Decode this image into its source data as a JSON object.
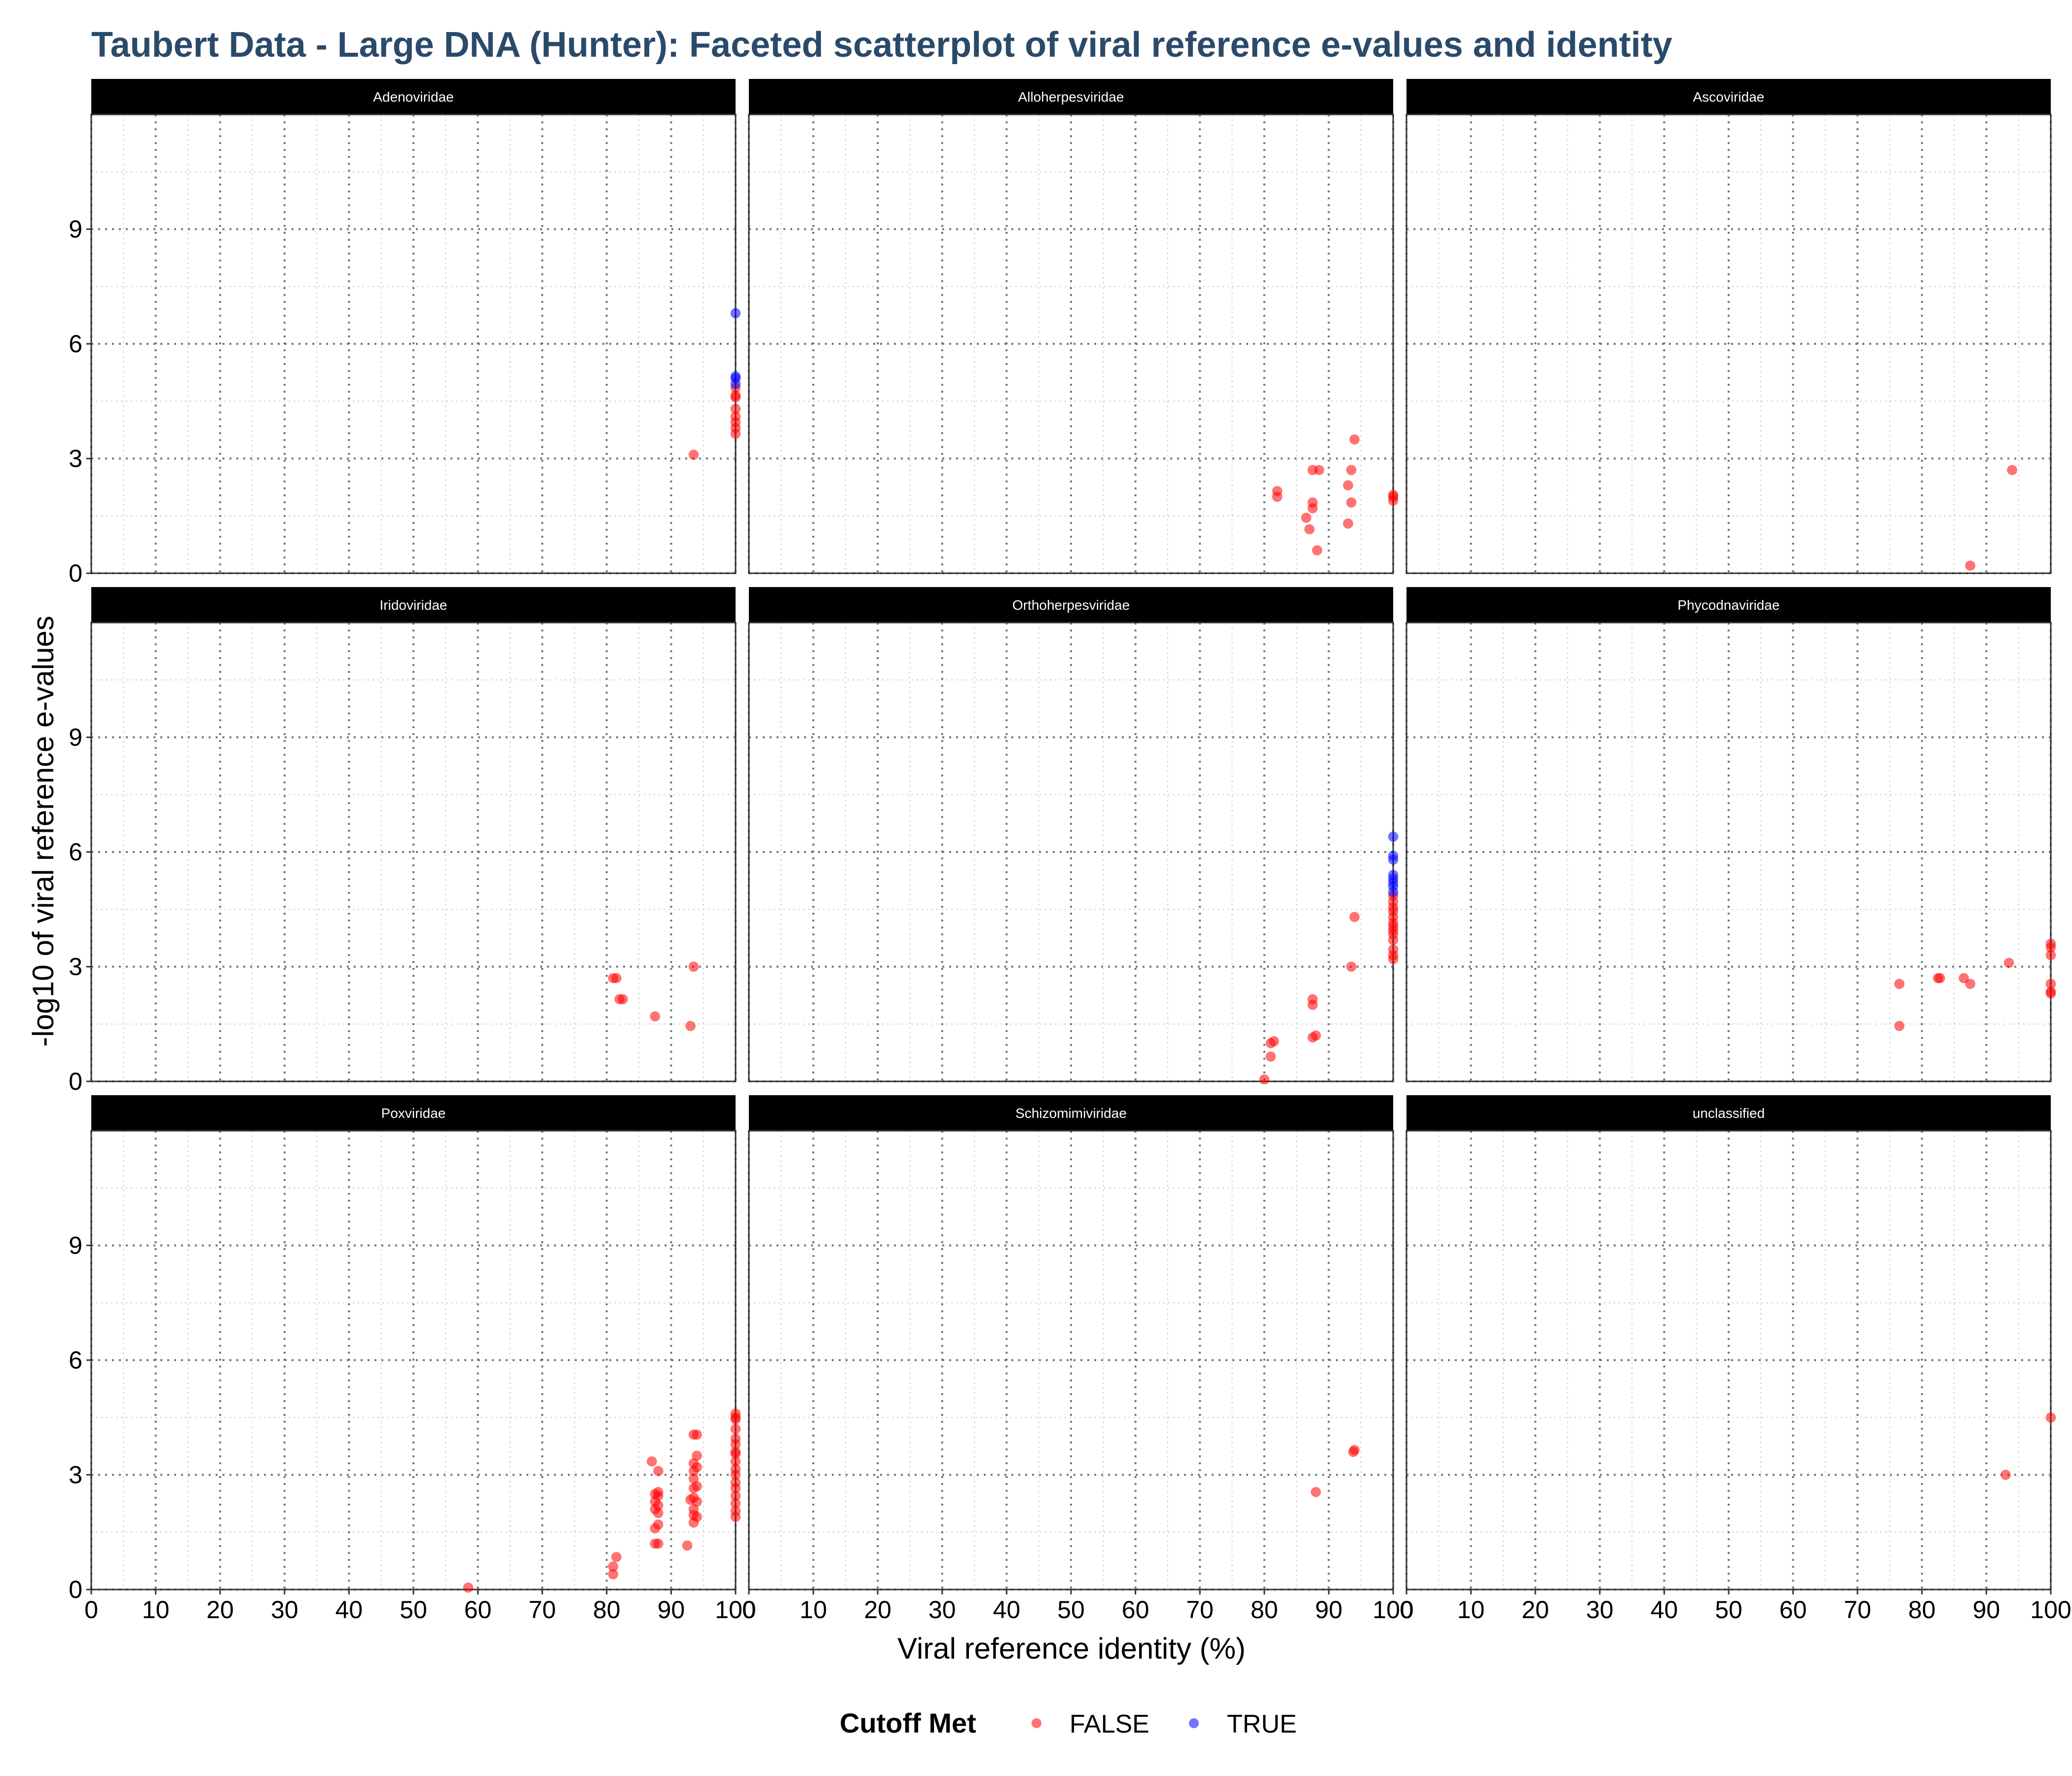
{
  "chart_data": {
    "type": "scatter",
    "title": "Taubert Data - Large DNA (Hunter): Faceted scatterplot of viral reference e-values and identity",
    "xlabel": "Viral reference identity (%)",
    "ylabel": "-log10 of viral reference e-values",
    "xlim": [
      0,
      100
    ],
    "ylim": [
      0,
      12
    ],
    "x_ticks": [
      0,
      10,
      20,
      30,
      40,
      50,
      60,
      70,
      80,
      90,
      100
    ],
    "y_ticks": [
      0,
      3,
      6,
      9
    ],
    "grid": "dotted major and minor",
    "legend": {
      "title": "Cutoff Met",
      "position": "bottom",
      "entries": [
        {
          "label": "FALSE",
          "color": "#ff0000"
        },
        {
          "label": "TRUE",
          "color": "#0000ff"
        }
      ]
    },
    "facets": [
      {
        "name": "Adenoviridae",
        "points": [
          {
            "x": 93.5,
            "y": 3.1,
            "cutoff": false
          },
          {
            "x": 100,
            "y": 3.65,
            "cutoff": false
          },
          {
            "x": 100,
            "y": 3.8,
            "cutoff": false
          },
          {
            "x": 100,
            "y": 3.95,
            "cutoff": false
          },
          {
            "x": 100,
            "y": 4.1,
            "cutoff": false
          },
          {
            "x": 100,
            "y": 4.3,
            "cutoff": false
          },
          {
            "x": 100,
            "y": 4.6,
            "cutoff": false
          },
          {
            "x": 100,
            "y": 4.65,
            "cutoff": false
          },
          {
            "x": 100,
            "y": 4.85,
            "cutoff": false
          },
          {
            "x": 100,
            "y": 4.95,
            "cutoff": true
          },
          {
            "x": 100,
            "y": 5.1,
            "cutoff": true
          },
          {
            "x": 100,
            "y": 5.15,
            "cutoff": true
          },
          {
            "x": 100,
            "y": 6.8,
            "cutoff": true
          }
        ]
      },
      {
        "name": "Alloherpesviridae",
        "points": [
          {
            "x": 82,
            "y": 2.15,
            "cutoff": false
          },
          {
            "x": 82,
            "y": 2.0,
            "cutoff": false
          },
          {
            "x": 86.5,
            "y": 1.45,
            "cutoff": false
          },
          {
            "x": 87,
            "y": 1.15,
            "cutoff": false
          },
          {
            "x": 87.5,
            "y": 1.85,
            "cutoff": false
          },
          {
            "x": 87.5,
            "y": 1.7,
            "cutoff": false
          },
          {
            "x": 87.5,
            "y": 2.7,
            "cutoff": false
          },
          {
            "x": 88.5,
            "y": 2.7,
            "cutoff": false
          },
          {
            "x": 88.2,
            "y": 0.6,
            "cutoff": false
          },
          {
            "x": 93,
            "y": 2.3,
            "cutoff": false
          },
          {
            "x": 93,
            "y": 1.3,
            "cutoff": false
          },
          {
            "x": 93.5,
            "y": 1.85,
            "cutoff": false
          },
          {
            "x": 93.5,
            "y": 2.7,
            "cutoff": false
          },
          {
            "x": 94,
            "y": 3.5,
            "cutoff": false
          },
          {
            "x": 100,
            "y": 2.05,
            "cutoff": false
          },
          {
            "x": 100,
            "y": 1.9,
            "cutoff": false
          },
          {
            "x": 100,
            "y": 2.0,
            "cutoff": false
          }
        ]
      },
      {
        "name": "Ascoviridae",
        "points": [
          {
            "x": 87.5,
            "y": 0.2,
            "cutoff": false
          },
          {
            "x": 94,
            "y": 2.7,
            "cutoff": false
          }
        ]
      },
      {
        "name": "Iridoviridae",
        "points": [
          {
            "x": 81,
            "y": 2.7,
            "cutoff": false
          },
          {
            "x": 81.5,
            "y": 2.7,
            "cutoff": false
          },
          {
            "x": 82,
            "y": 2.15,
            "cutoff": false
          },
          {
            "x": 82.5,
            "y": 2.15,
            "cutoff": false
          },
          {
            "x": 87.5,
            "y": 1.7,
            "cutoff": false
          },
          {
            "x": 93,
            "y": 1.45,
            "cutoff": false
          },
          {
            "x": 93.5,
            "y": 3.0,
            "cutoff": false
          }
        ]
      },
      {
        "name": "Orthoherpesviridae",
        "points": [
          {
            "x": 80,
            "y": 0.05,
            "cutoff": false
          },
          {
            "x": 81,
            "y": 0.65,
            "cutoff": false
          },
          {
            "x": 81,
            "y": 1.0,
            "cutoff": false
          },
          {
            "x": 81.5,
            "y": 1.05,
            "cutoff": false
          },
          {
            "x": 87.5,
            "y": 1.15,
            "cutoff": false
          },
          {
            "x": 88,
            "y": 1.2,
            "cutoff": false
          },
          {
            "x": 87.5,
            "y": 2.0,
            "cutoff": false
          },
          {
            "x": 87.5,
            "y": 2.15,
            "cutoff": false
          },
          {
            "x": 93.5,
            "y": 3.0,
            "cutoff": false
          },
          {
            "x": 94,
            "y": 4.3,
            "cutoff": false
          },
          {
            "x": 100,
            "y": 3.2,
            "cutoff": false
          },
          {
            "x": 100,
            "y": 3.3,
            "cutoff": false
          },
          {
            "x": 100,
            "y": 3.45,
            "cutoff": false
          },
          {
            "x": 100,
            "y": 3.7,
            "cutoff": false
          },
          {
            "x": 100,
            "y": 3.85,
            "cutoff": false
          },
          {
            "x": 100,
            "y": 3.95,
            "cutoff": false
          },
          {
            "x": 100,
            "y": 4.05,
            "cutoff": false
          },
          {
            "x": 100,
            "y": 4.15,
            "cutoff": false
          },
          {
            "x": 100,
            "y": 4.3,
            "cutoff": false
          },
          {
            "x": 100,
            "y": 4.45,
            "cutoff": false
          },
          {
            "x": 100,
            "y": 4.55,
            "cutoff": false
          },
          {
            "x": 100,
            "y": 4.7,
            "cutoff": false
          },
          {
            "x": 100,
            "y": 4.85,
            "cutoff": false
          },
          {
            "x": 100,
            "y": 4.95,
            "cutoff": true
          },
          {
            "x": 100,
            "y": 5.1,
            "cutoff": true
          },
          {
            "x": 100,
            "y": 5.2,
            "cutoff": true
          },
          {
            "x": 100,
            "y": 5.3,
            "cutoff": true
          },
          {
            "x": 100,
            "y": 5.4,
            "cutoff": true
          },
          {
            "x": 100,
            "y": 5.8,
            "cutoff": true
          },
          {
            "x": 100,
            "y": 5.9,
            "cutoff": true
          },
          {
            "x": 100,
            "y": 6.4,
            "cutoff": true
          }
        ]
      },
      {
        "name": "Phycodnaviridae",
        "points": [
          {
            "x": 76.5,
            "y": 2.55,
            "cutoff": false
          },
          {
            "x": 76.5,
            "y": 1.45,
            "cutoff": false
          },
          {
            "x": 82.5,
            "y": 2.7,
            "cutoff": false
          },
          {
            "x": 82.8,
            "y": 2.7,
            "cutoff": false
          },
          {
            "x": 86.5,
            "y": 2.7,
            "cutoff": false
          },
          {
            "x": 87.5,
            "y": 2.55,
            "cutoff": false
          },
          {
            "x": 93.5,
            "y": 3.1,
            "cutoff": false
          },
          {
            "x": 100,
            "y": 3.6,
            "cutoff": false
          },
          {
            "x": 100,
            "y": 3.5,
            "cutoff": false
          },
          {
            "x": 100,
            "y": 3.3,
            "cutoff": false
          },
          {
            "x": 100,
            "y": 2.55,
            "cutoff": false
          },
          {
            "x": 100,
            "y": 2.3,
            "cutoff": false
          },
          {
            "x": 100,
            "y": 2.35,
            "cutoff": false
          }
        ]
      },
      {
        "name": "Poxviridae",
        "points": [
          {
            "x": 58.5,
            "y": 0.05,
            "cutoff": false
          },
          {
            "x": 81,
            "y": 0.4,
            "cutoff": false
          },
          {
            "x": 81,
            "y": 0.6,
            "cutoff": false
          },
          {
            "x": 81.5,
            "y": 0.85,
            "cutoff": false
          },
          {
            "x": 87,
            "y": 3.35,
            "cutoff": false
          },
          {
            "x": 87.5,
            "y": 2.5,
            "cutoff": false
          },
          {
            "x": 87.5,
            "y": 2.3,
            "cutoff": false
          },
          {
            "x": 87.5,
            "y": 2.1,
            "cutoff": false
          },
          {
            "x": 87.5,
            "y": 1.6,
            "cutoff": false
          },
          {
            "x": 87.5,
            "y": 1.2,
            "cutoff": false
          },
          {
            "x": 88,
            "y": 3.1,
            "cutoff": false
          },
          {
            "x": 88,
            "y": 2.55,
            "cutoff": false
          },
          {
            "x": 88,
            "y": 2.45,
            "cutoff": false
          },
          {
            "x": 88,
            "y": 2.2,
            "cutoff": false
          },
          {
            "x": 88,
            "y": 2.0,
            "cutoff": false
          },
          {
            "x": 88,
            "y": 1.7,
            "cutoff": false
          },
          {
            "x": 88,
            "y": 1.2,
            "cutoff": false
          },
          {
            "x": 92.5,
            "y": 1.15,
            "cutoff": false
          },
          {
            "x": 93,
            "y": 2.35,
            "cutoff": false
          },
          {
            "x": 93.5,
            "y": 4.05,
            "cutoff": false
          },
          {
            "x": 93.5,
            "y": 3.3,
            "cutoff": false
          },
          {
            "x": 93.5,
            "y": 3.1,
            "cutoff": false
          },
          {
            "x": 93.5,
            "y": 2.9,
            "cutoff": false
          },
          {
            "x": 93.5,
            "y": 2.65,
            "cutoff": false
          },
          {
            "x": 93.5,
            "y": 2.4,
            "cutoff": false
          },
          {
            "x": 93.5,
            "y": 2.1,
            "cutoff": false
          },
          {
            "x": 93.5,
            "y": 1.95,
            "cutoff": false
          },
          {
            "x": 93.5,
            "y": 1.75,
            "cutoff": false
          },
          {
            "x": 94,
            "y": 4.05,
            "cutoff": false
          },
          {
            "x": 94,
            "y": 3.5,
            "cutoff": false
          },
          {
            "x": 94,
            "y": 3.2,
            "cutoff": false
          },
          {
            "x": 94,
            "y": 2.7,
            "cutoff": false
          },
          {
            "x": 94,
            "y": 2.3,
            "cutoff": false
          },
          {
            "x": 94,
            "y": 1.9,
            "cutoff": false
          },
          {
            "x": 100,
            "y": 4.6,
            "cutoff": false
          },
          {
            "x": 100,
            "y": 4.5,
            "cutoff": false
          },
          {
            "x": 100,
            "y": 4.45,
            "cutoff": false
          },
          {
            "x": 100,
            "y": 4.2,
            "cutoff": false
          },
          {
            "x": 100,
            "y": 3.95,
            "cutoff": false
          },
          {
            "x": 100,
            "y": 3.8,
            "cutoff": false
          },
          {
            "x": 100,
            "y": 3.6,
            "cutoff": false
          },
          {
            "x": 100,
            "y": 3.55,
            "cutoff": false
          },
          {
            "x": 100,
            "y": 3.35,
            "cutoff": false
          },
          {
            "x": 100,
            "y": 3.15,
            "cutoff": false
          },
          {
            "x": 100,
            "y": 3.0,
            "cutoff": false
          },
          {
            "x": 100,
            "y": 2.8,
            "cutoff": false
          },
          {
            "x": 100,
            "y": 2.65,
            "cutoff": false
          },
          {
            "x": 100,
            "y": 2.45,
            "cutoff": false
          },
          {
            "x": 100,
            "y": 2.25,
            "cutoff": false
          },
          {
            "x": 100,
            "y": 2.05,
            "cutoff": false
          },
          {
            "x": 100,
            "y": 1.9,
            "cutoff": false
          }
        ]
      },
      {
        "name": "Schizomimiviridae",
        "points": [
          {
            "x": 88,
            "y": 2.55,
            "cutoff": false
          },
          {
            "x": 94,
            "y": 3.65,
            "cutoff": false
          },
          {
            "x": 93.8,
            "y": 3.6,
            "cutoff": false
          }
        ]
      },
      {
        "name": "unclassified",
        "points": [
          {
            "x": 93,
            "y": 3.0,
            "cutoff": false
          },
          {
            "x": 100,
            "y": 4.5,
            "cutoff": false
          }
        ]
      }
    ]
  }
}
